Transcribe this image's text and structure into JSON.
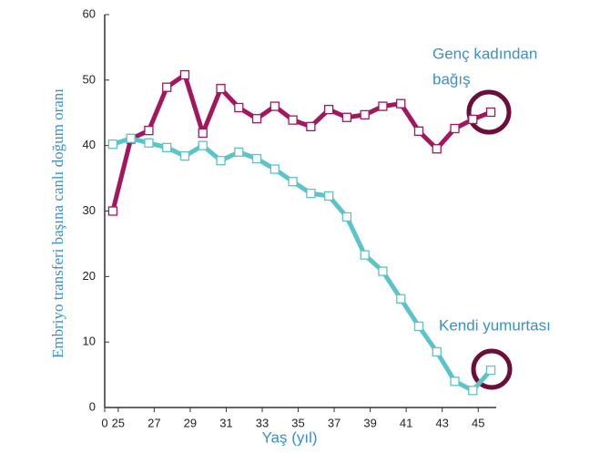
{
  "chart_data": {
    "type": "line",
    "xlabel": "Yaş (yıl)",
    "ylabel": "Embriyo transferi başına canlı doğum oranı",
    "annotations": [
      [
        "Genç kadından",
        "bağış"
      ],
      [
        "Kendi yumurtası"
      ]
    ],
    "xlim": [
      24.25,
      46
    ],
    "xticks": [
      {
        "value": 24.25,
        "label": "0"
      },
      25,
      27,
      29,
      31,
      33,
      35,
      37,
      39,
      41,
      43,
      45
    ],
    "ylim": [
      0,
      60
    ],
    "yticks": [
      0,
      10,
      20,
      30,
      40,
      50,
      60
    ],
    "x": [
      24.7,
      25.7,
      26.7,
      27.7,
      28.7,
      29.7,
      30.7,
      31.7,
      32.7,
      33.7,
      34.7,
      35.7,
      36.7,
      37.7,
      38.7,
      39.7,
      40.7,
      41.7,
      42.7,
      43.7,
      44.7,
      45.7
    ],
    "series": [
      {
        "name": "Genç kadından bağış",
        "color": "#a3175f",
        "values": [
          30,
          41,
          42.3,
          48.9,
          50.8,
          41.9,
          48.7,
          45.8,
          44.1,
          46,
          43.9,
          42.9,
          45.5,
          44.3,
          44.7,
          46,
          46.4,
          42.2,
          39.5,
          42.6,
          44,
          45.1
        ]
      },
      {
        "name": "Kendi yumurtası",
        "color": "#5cc3c8",
        "values": [
          40.2,
          41.1,
          40.4,
          39.7,
          38.4,
          40,
          37.7,
          39,
          38,
          36.4,
          34.5,
          32.7,
          32.3,
          29.1,
          23.3,
          20.8,
          16.6,
          12.4,
          8.5,
          4,
          2.6,
          5.7
        ]
      }
    ]
  }
}
